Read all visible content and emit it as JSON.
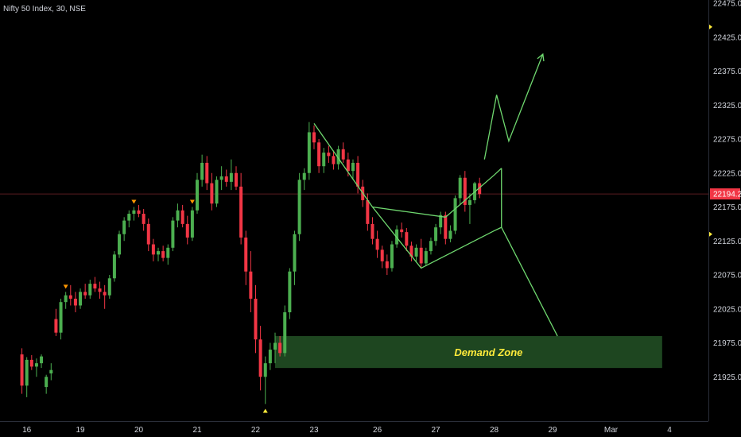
{
  "chart_data": {
    "type": "candlestick",
    "title": "Nifty 50 Index, 30, NSE",
    "y_range": [
      21875,
      22475
    ],
    "y_ticks": [
      "22475.00",
      "22425.00",
      "22375.00",
      "22325.00",
      "22275.00",
      "22225.00",
      "22175.00",
      "22125.00",
      "22075.00",
      "22025.00",
      "21975.00",
      "21925.00"
    ],
    "x_ticks": [
      "16",
      "19",
      "20",
      "21",
      "22",
      "23",
      "26",
      "27",
      "28",
      "29",
      "Mar",
      "4"
    ],
    "x_tick_index": [
      1,
      12,
      24,
      36,
      48,
      60,
      73,
      85,
      97,
      109,
      121,
      133
    ],
    "x_range": [
      -4.5,
      141
    ],
    "last_price": "22194.20",
    "last_price_value": 22194.2,
    "colors": {
      "background": "#000000",
      "up": "#4caf50",
      "down": "#f23645",
      "pattern": "#6fd86f",
      "zone_fill": "#1e4620",
      "zone_text": "#ffeb3b",
      "price_tag": "#f23645",
      "price_line": "#5a1c22",
      "marker": "#ffeb3b",
      "axis_text": "#d1d4dc"
    },
    "candles": [
      [
        21958,
        21967,
        21900,
        21912
      ],
      [
        21912,
        21954,
        21895,
        21950
      ],
      [
        21950,
        21957,
        21935,
        21940
      ],
      [
        21940,
        21952,
        21925,
        21945
      ],
      [
        21945,
        21958,
        21938,
        21955
      ],
      [
        21910,
        21928,
        21900,
        21925
      ],
      [
        21930,
        21945,
        21920,
        21935
      ],
      [
        22010,
        22025,
        21985,
        21990
      ],
      [
        21990,
        22040,
        21980,
        22035
      ],
      [
        22035,
        22050,
        22025,
        22045
      ],
      [
        22045,
        22060,
        22030,
        22040
      ],
      [
        22040,
        22050,
        22020,
        22030
      ],
      [
        22030,
        22055,
        22025,
        22050
      ],
      [
        22050,
        22062,
        22040,
        22045
      ],
      [
        22045,
        22068,
        22040,
        22062
      ],
      [
        22062,
        22072,
        22050,
        22055
      ],
      [
        22055,
        22065,
        22040,
        22050
      ],
      [
        22050,
        22060,
        22025,
        22045
      ],
      [
        22045,
        22075,
        22040,
        22070
      ],
      [
        22070,
        22110,
        22065,
        22105
      ],
      [
        22105,
        22140,
        22100,
        22135
      ],
      [
        22135,
        22160,
        22125,
        22155
      ],
      [
        22155,
        22170,
        22145,
        22165
      ],
      [
        22165,
        22175,
        22155,
        22170
      ],
      [
        22170,
        22178,
        22160,
        22165
      ],
      [
        22165,
        22172,
        22140,
        22150
      ],
      [
        22150,
        22158,
        22110,
        22120
      ],
      [
        22120,
        22128,
        22095,
        22105
      ],
      [
        22105,
        22115,
        22095,
        22110
      ],
      [
        22110,
        22118,
        22095,
        22100
      ],
      [
        22100,
        22120,
        22090,
        22115
      ],
      [
        22115,
        22160,
        22110,
        22155
      ],
      [
        22155,
        22180,
        22145,
        22170
      ],
      [
        22170,
        22178,
        22145,
        22150
      ],
      [
        22150,
        22162,
        22120,
        22130
      ],
      [
        22130,
        22175,
        22125,
        22170
      ],
      [
        22170,
        22225,
        22165,
        22215
      ],
      [
        22215,
        22252,
        22205,
        22240
      ],
      [
        22240,
        22250,
        22200,
        22210
      ],
      [
        22210,
        22225,
        22170,
        22180
      ],
      [
        22180,
        22220,
        22175,
        22215
      ],
      [
        22215,
        22235,
        22200,
        22220
      ],
      [
        22220,
        22230,
        22205,
        22212
      ],
      [
        22212,
        22245,
        22200,
        22225
      ],
      [
        22225,
        22235,
        22200,
        22205
      ],
      [
        22205,
        22225,
        22120,
        22130
      ],
      [
        22130,
        22140,
        22060,
        22080
      ],
      [
        22080,
        22110,
        22020,
        22040
      ],
      [
        22040,
        22060,
        21960,
        21980
      ],
      [
        21980,
        22000,
        21905,
        21925
      ],
      [
        21925,
        21955,
        21885,
        21945
      ],
      [
        21945,
        21975,
        21935,
        21965
      ],
      [
        21965,
        21990,
        21945,
        21975
      ],
      [
        21975,
        21985,
        21955,
        21960
      ],
      [
        21960,
        22030,
        21955,
        22020
      ],
      [
        22020,
        22085,
        22010,
        22080
      ],
      [
        22080,
        22140,
        22060,
        22135
      ],
      [
        22135,
        22225,
        22125,
        22215
      ],
      [
        22215,
        22232,
        22200,
        22225
      ],
      [
        22225,
        22300,
        22215,
        22285
      ],
      [
        22285,
        22295,
        22260,
        22270
      ],
      [
        22270,
        22275,
        22225,
        22235
      ],
      [
        22235,
        22262,
        22225,
        22255
      ],
      [
        22255,
        22265,
        22240,
        22250
      ],
      [
        22250,
        22258,
        22230,
        22238
      ],
      [
        22238,
        22265,
        22230,
        22260
      ],
      [
        22260,
        22270,
        22240,
        22245
      ],
      [
        22245,
        22255,
        22220,
        22228
      ],
      [
        22228,
        22245,
        22215,
        22240
      ],
      [
        22240,
        22250,
        22195,
        22205
      ],
      [
        22205,
        22215,
        22175,
        22185
      ],
      [
        22185,
        22195,
        22140,
        22150
      ],
      [
        22150,
        22160,
        22120,
        22128
      ],
      [
        22128,
        22140,
        22100,
        22112
      ],
      [
        22112,
        22118,
        22085,
        22095
      ],
      [
        22095,
        22105,
        22075,
        22085
      ],
      [
        22085,
        22125,
        22080,
        22120
      ],
      [
        22120,
        22148,
        22115,
        22142
      ],
      [
        22142,
        22152,
        22130,
        22138
      ],
      [
        22138,
        22144,
        22110,
        22118
      ],
      [
        22118,
        22124,
        22095,
        22102
      ],
      [
        22102,
        22120,
        22095,
        22115
      ],
      [
        22115,
        22128,
        22085,
        22092
      ],
      [
        22092,
        22115,
        22088,
        22110
      ],
      [
        22110,
        22130,
        22105,
        22125
      ],
      [
        22125,
        22150,
        22118,
        22145
      ],
      [
        22145,
        22168,
        22135,
        22163
      ],
      [
        22163,
        22168,
        22120,
        22128
      ],
      [
        22128,
        22148,
        22123,
        22140
      ],
      [
        22140,
        22192,
        22135,
        22188
      ],
      [
        22188,
        22222,
        22178,
        22218
      ],
      [
        22218,
        22228,
        22168,
        22178
      ],
      [
        22178,
        22195,
        22150,
        22185
      ],
      [
        22185,
        22212,
        22180,
        22210
      ],
      [
        22210,
        22218,
        22188,
        22194
      ]
    ],
    "markers": [
      [
        9,
        "down"
      ],
      [
        23,
        "down"
      ],
      [
        35,
        "down"
      ],
      [
        50,
        "up"
      ]
    ],
    "pattern": {
      "pole_top": [
        60,
        22298
      ],
      "pole_bottom": [
        72,
        22175
      ],
      "channel_lower": [
        [
          72,
          22175
        ],
        [
          82,
          22085
        ],
        [
          97,
          22140
        ],
        [
          98.5,
          22145
        ]
      ],
      "channel_upper": [
        [
          87,
          22160
        ],
        [
          97,
          22222
        ],
        [
          98.5,
          22232
        ]
      ],
      "channel_left_edge": [
        [
          72,
          22175
        ],
        [
          82,
          22085
        ]
      ],
      "up_path": [
        [
          95,
          22245
        ],
        [
          97.5,
          22340
        ],
        [
          100,
          22272
        ],
        [
          107,
          22400
        ]
      ],
      "down_path": [
        [
          98.5,
          22145
        ],
        [
          110,
          21985
        ]
      ]
    },
    "demand_zone": {
      "label": "Demand Zone",
      "y_range": [
        21938,
        21985
      ],
      "x_range": [
        52,
        131.5
      ]
    }
  }
}
